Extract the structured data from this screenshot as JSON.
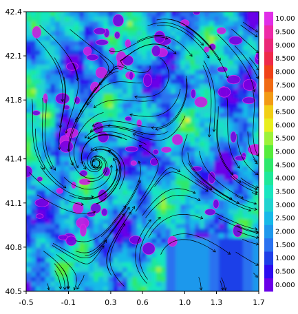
{
  "chart_data": {
    "type": "heatmap",
    "title": "",
    "xlabel": "",
    "ylabel": "",
    "xlim": [
      -0.5,
      1.7
    ],
    "ylim": [
      40.5,
      42.4
    ],
    "x_ticks": [
      "-0.5",
      "-0.1",
      "0.3",
      "0.6",
      "1.0",
      "1.3",
      "1.7"
    ],
    "y_ticks": [
      "42.4",
      "42.1",
      "41.8",
      "41.4",
      "41.1",
      "40.8",
      "40.5"
    ],
    "colorbar": {
      "levels": [
        "0.000",
        "0.500",
        "1.000",
        "1.500",
        "2.000",
        "2.500",
        "3.000",
        "3.500",
        "4.000",
        "4.500",
        "5.000",
        "5.500",
        "6.000",
        "6.500",
        "7.000",
        "7.500",
        "8.000",
        "8.500",
        "9.000",
        "9.500",
        "10.00"
      ],
      "colors": [
        "#6a00e8",
        "#2c0cf0",
        "#1e3fe8",
        "#2a72f0",
        "#1f98ec",
        "#17b9e8",
        "#21d3d0",
        "#19e6c0",
        "#1fe89a",
        "#2ee86c",
        "#55ec3c",
        "#9cf23a",
        "#e8ee1e",
        "#f2cf16",
        "#f29a14",
        "#f06a14",
        "#f04218",
        "#ee2a4a",
        "#ea2878",
        "#ee2aa8",
        "#e02ee8"
      ]
    },
    "field_description": "gridded scalar field over lon/lat; predominantly 0.5-3.0 with isolated maxima near 1.0; overlaid streamlines"
  }
}
